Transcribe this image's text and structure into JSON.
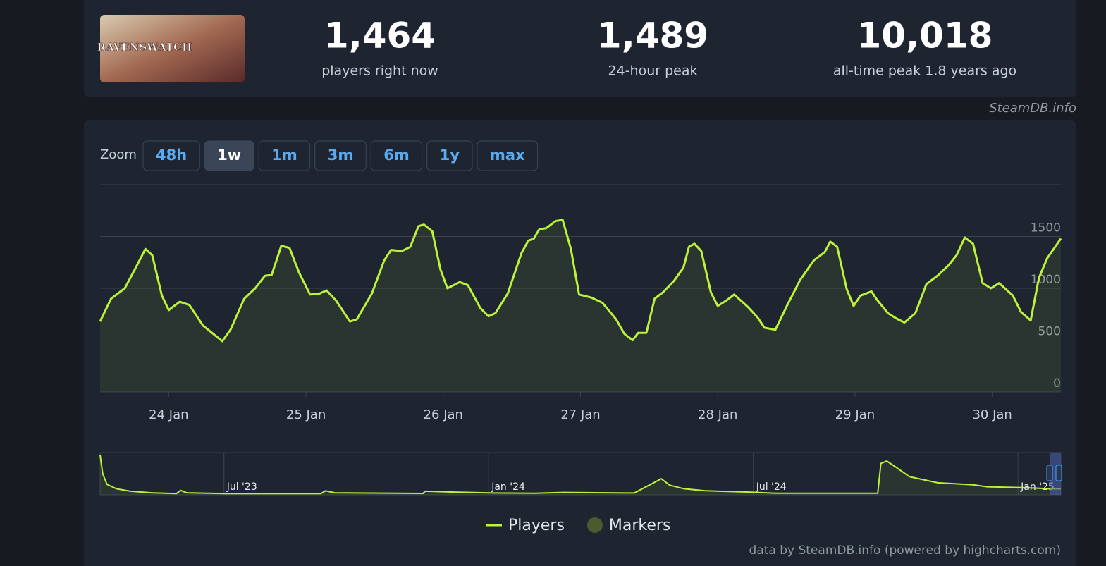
{
  "header": {
    "image_text": "RAVENSWATCH",
    "stats": [
      {
        "value": "1,464",
        "label": "players right now"
      },
      {
        "value": "1,489",
        "label": "24-hour peak"
      },
      {
        "value": "10,018",
        "label": "all-time peak 1.8 years ago"
      }
    ],
    "source": "SteamDB.info"
  },
  "zoom": {
    "label": "Zoom",
    "buttons": [
      "48h",
      "1w",
      "1m",
      "3m",
      "6m",
      "1y",
      "max"
    ],
    "active": 1
  },
  "chart_data": [
    {
      "type": "line",
      "ylim": [
        0,
        2000
      ],
      "yticks": [
        0,
        500,
        1000,
        1500
      ],
      "xlim": [
        23.5,
        30.5
      ],
      "xticks": [
        {
          "value": 24,
          "label": "24 Jan"
        },
        {
          "value": 25,
          "label": "25 Jan"
        },
        {
          "value": 26,
          "label": "26 Jan"
        },
        {
          "value": 27,
          "label": "27 Jan"
        },
        {
          "value": 28,
          "label": "28 Jan"
        },
        {
          "value": 29,
          "label": "29 Jan"
        },
        {
          "value": 30,
          "label": "30 Jan"
        }
      ],
      "grid": true,
      "area": true,
      "series": [
        {
          "name": "Players",
          "color": "#bef23a",
          "x": [
            23.5,
            23.58,
            23.68,
            23.76,
            23.83,
            23.88,
            23.95,
            24.0,
            24.08,
            24.15,
            24.25,
            24.39,
            24.45,
            24.55,
            24.63,
            24.7,
            24.75,
            24.82,
            24.88,
            24.95,
            25.03,
            25.1,
            25.15,
            25.22,
            25.32,
            25.37,
            25.48,
            25.57,
            25.62,
            25.7,
            25.76,
            25.82,
            25.86,
            25.92,
            25.98,
            26.03,
            26.12,
            26.18,
            26.27,
            26.33,
            26.38,
            26.47,
            26.57,
            26.62,
            26.66,
            26.7,
            26.75,
            26.82,
            26.87,
            26.93,
            26.99,
            27.08,
            27.16,
            27.26,
            27.32,
            27.38,
            27.42,
            27.48,
            27.54,
            27.6,
            27.68,
            27.75,
            27.79,
            27.83,
            27.88,
            27.95,
            28.0,
            28.06,
            28.12,
            28.22,
            28.29,
            28.34,
            28.42,
            28.5,
            28.6,
            28.7,
            28.78,
            28.82,
            28.87,
            28.94,
            28.99,
            29.04,
            29.12,
            29.16,
            29.24,
            29.3,
            29.36,
            29.44,
            29.52,
            29.6,
            29.68,
            29.74,
            29.8,
            29.86,
            29.93,
            29.99,
            30.05,
            30.15,
            30.21,
            30.28,
            30.34,
            30.4,
            30.5
          ],
          "values": [
            680,
            900,
            1000,
            1200,
            1380,
            1320,
            930,
            790,
            870,
            840,
            640,
            490,
            600,
            900,
            1000,
            1120,
            1130,
            1410,
            1390,
            1150,
            940,
            950,
            980,
            880,
            680,
            700,
            950,
            1270,
            1370,
            1360,
            1400,
            1600,
            1615,
            1550,
            1180,
            1000,
            1060,
            1030,
            810,
            730,
            760,
            950,
            1340,
            1460,
            1480,
            1570,
            1580,
            1650,
            1660,
            1380,
            940,
            910,
            860,
            700,
            560,
            500,
            570,
            570,
            900,
            960,
            1070,
            1200,
            1400,
            1430,
            1360,
            960,
            830,
            880,
            940,
            820,
            720,
            620,
            600,
            820,
            1080,
            1270,
            1350,
            1450,
            1400,
            990,
            830,
            930,
            970,
            890,
            760,
            710,
            670,
            760,
            1040,
            1120,
            1220,
            1320,
            1490,
            1430,
            1050,
            1000,
            1050,
            930,
            770,
            690,
            1100,
            1290,
            1480
          ]
        },
        {
          "name": "Markers",
          "color": "#4b5b2e",
          "values": []
        }
      ]
    },
    {
      "type": "line",
      "ylim": [
        0,
        10500
      ],
      "xlim": [
        2023.266,
        2025.081
      ],
      "xticks": [
        {
          "value": 2023.5,
          "label": "Jul '23"
        },
        {
          "value": 2024.0,
          "label": "Jan '24"
        },
        {
          "value": 2024.5,
          "label": "Jul '24"
        },
        {
          "value": 2025.0,
          "label": "Jan '25"
        }
      ],
      "area": true,
      "series": [
        {
          "color": "#bef23a",
          "x": [
            2023.266,
            2023.271,
            2023.279,
            2023.297,
            2023.323,
            2023.363,
            2023.41,
            2023.418,
            2023.43,
            2023.503,
            2023.683,
            2023.692,
            2023.709,
            2023.876,
            2023.88,
            2023.929,
            2024.009,
            2024.089,
            2024.142,
            2024.275,
            2024.309,
            2024.326,
            2024.342,
            2024.369,
            2024.409,
            2024.488,
            2024.542,
            2024.735,
            2024.741,
            2024.752,
            2024.768,
            2024.795,
            2024.848,
            2024.915,
            2024.941,
            2025.008,
            2025.061,
            2025.081
          ],
          "values": [
            9900,
            5200,
            2600,
            1500,
            900,
            500,
            300,
            1100,
            500,
            300,
            300,
            1000,
            500,
            350,
            900,
            700,
            450,
            400,
            600,
            450,
            2800,
            4000,
            2400,
            1500,
            1000,
            700,
            400,
            400,
            7800,
            8400,
            7000,
            4500,
            3000,
            2500,
            2000,
            1800,
            1500,
            1500
          ]
        }
      ]
    }
  ],
  "credits": "data by SteamDB.info (powered by highcharts.com)"
}
